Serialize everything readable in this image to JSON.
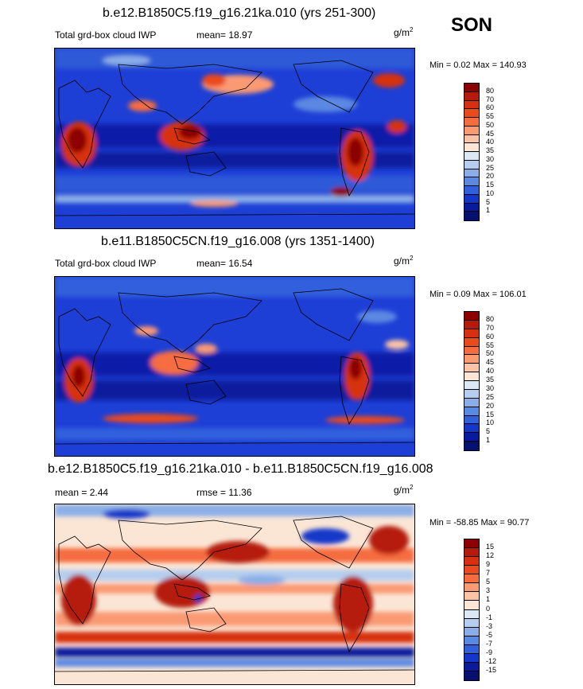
{
  "season": "SON",
  "panels": [
    {
      "title": "b.e12.B1850C5.f19_g16.21ka.010 (yrs 251-300)",
      "left_label": "Total grd-box cloud IWP",
      "stat1_label": "mean=",
      "stat1_value": "18.97",
      "units": "g/m",
      "units_sup": "2",
      "minmax": "Min =   0.02 Max = 140.93",
      "colorbar": {
        "levels": [
          "80",
          "70",
          "60",
          "55",
          "50",
          "45",
          "40",
          "35",
          "30",
          "25",
          "20",
          "15",
          "10",
          "5",
          "1"
        ],
        "colors": [
          "#8b0000",
          "#b51a0c",
          "#d63010",
          "#ea4a1e",
          "#f56d3f",
          "#fa9a73",
          "#fcc3a4",
          "#fbe6d6",
          "#dbe8f6",
          "#b5cdee",
          "#8aafe8",
          "#5b88e2",
          "#3260dc",
          "#1537c9",
          "#0a1a9c",
          "#06106f"
        ]
      }
    },
    {
      "title": "b.e11.B1850C5CN.f19_g16.008 (yrs 1351-1400)",
      "left_label": "Total grd-box cloud IWP",
      "stat1_label": "mean=",
      "stat1_value": "16.54",
      "units": "g/m",
      "units_sup": "2",
      "minmax": "Min =   0.09 Max = 106.01",
      "colorbar": {
        "levels": [
          "80",
          "70",
          "60",
          "55",
          "50",
          "45",
          "40",
          "35",
          "30",
          "25",
          "20",
          "15",
          "10",
          "5",
          "1"
        ],
        "colors": [
          "#8b0000",
          "#b51a0c",
          "#d63010",
          "#ea4a1e",
          "#f56d3f",
          "#fa9a73",
          "#fcc3a4",
          "#fbe6d6",
          "#dbe8f6",
          "#b5cdee",
          "#8aafe8",
          "#5b88e2",
          "#3260dc",
          "#1537c9",
          "#0a1a9c",
          "#06106f"
        ]
      }
    },
    {
      "title": "b.e12.B1850C5.f19_g16.21ka.010 - b.e11.B1850C5CN.f19_g16.008",
      "stat1_label": "mean =",
      "stat1_value": "2.44",
      "stat2_label": "rmse =",
      "stat2_value": "11.36",
      "units": "g/m",
      "units_sup": "2",
      "minmax": "Min = -58.85 Max =  90.77",
      "colorbar": {
        "levels": [
          "15",
          "12",
          "9",
          "7",
          "5",
          "3",
          "1",
          "0",
          "-1",
          "-3",
          "-5",
          "-7",
          "-9",
          "-12",
          "-15"
        ],
        "colors": [
          "#8b0000",
          "#b51a0c",
          "#d63010",
          "#ea4a1e",
          "#f56d3f",
          "#fa9a73",
          "#fcc3a4",
          "#fbe6d6",
          "#dbe8f6",
          "#b5cdee",
          "#8aafe8",
          "#5b88e2",
          "#3260dc",
          "#1537c9",
          "#0a1a9c",
          "#06106f"
        ]
      }
    }
  ]
}
